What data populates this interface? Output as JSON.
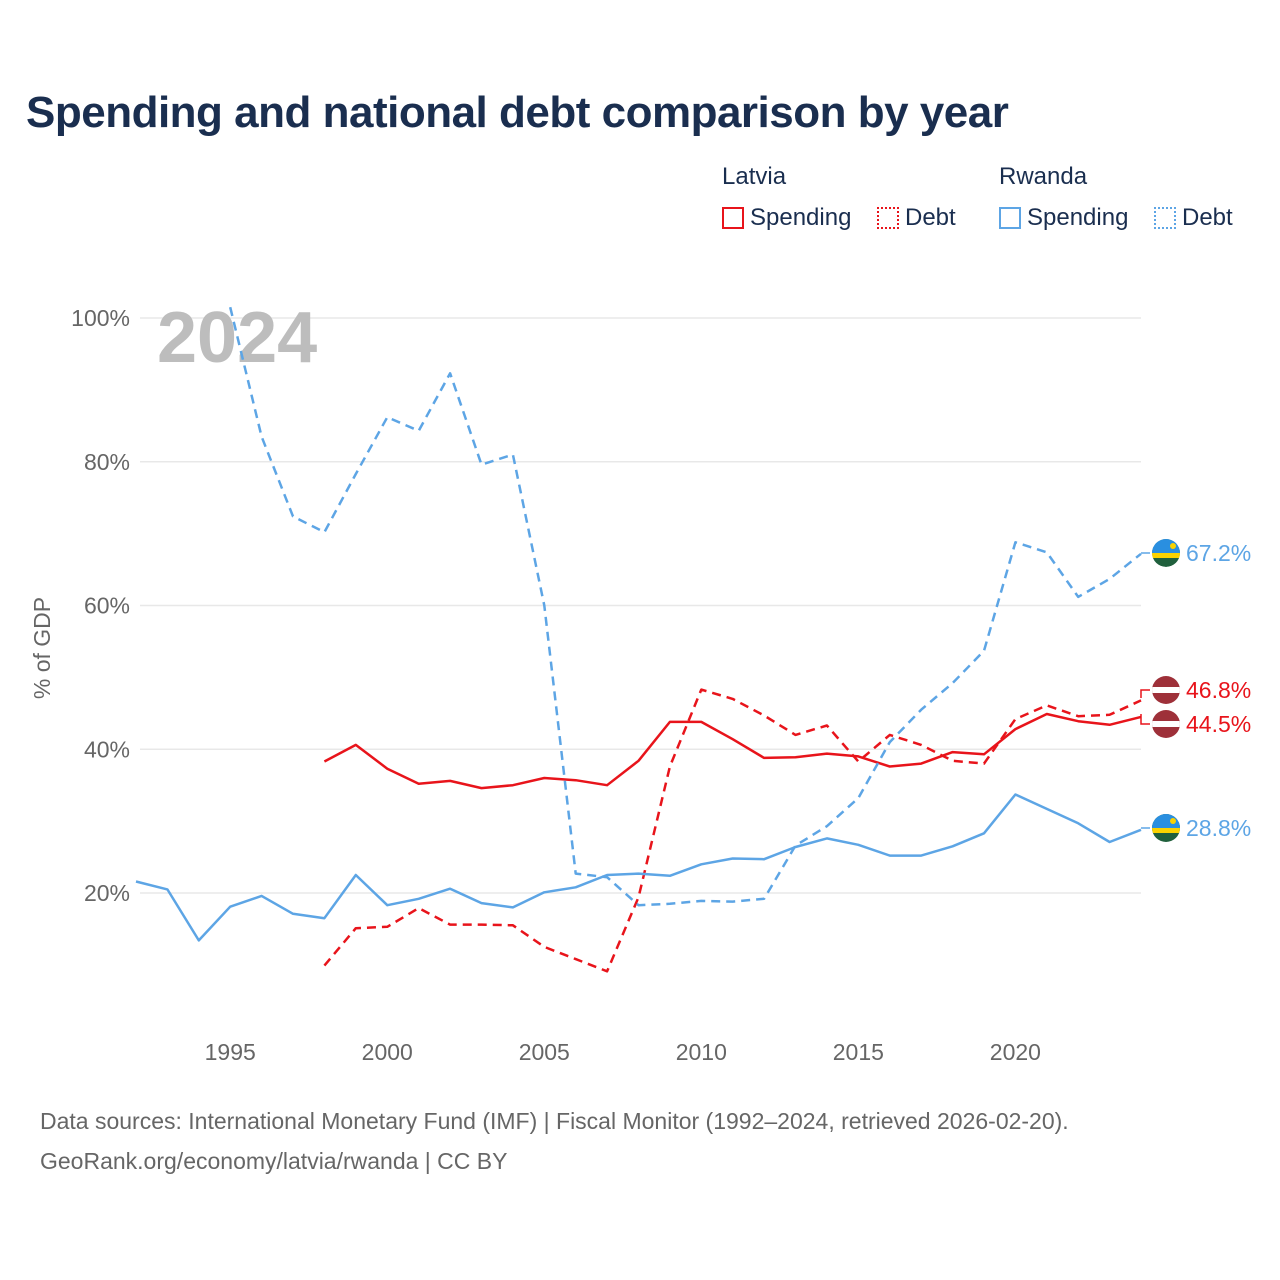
{
  "title": "Spending and national debt comparison by year",
  "legend": {
    "groups": [
      {
        "country": "Latvia",
        "items": [
          "Spending",
          "Debt"
        ]
      },
      {
        "country": "Rwanda",
        "items": [
          "Spending",
          "Debt"
        ]
      }
    ]
  },
  "colors": {
    "latvia": "#e8141b",
    "rwanda": "#5da5e5",
    "title": "#1a2e4f",
    "year_watermark": "#bdbdbd"
  },
  "year_watermark": "2024",
  "footer": {
    "line1": "Data sources: International Monetary Fund (IMF) | Fiscal Monitor (1992–2024, retrieved 2026-02-20).",
    "line2": "GeoRank.org/economy/latvia/rwanda | CC BY"
  },
  "chart_data": {
    "type": "line",
    "title": "Spending and national debt comparison by year",
    "xlabel": "",
    "ylabel": "% of GDP",
    "xlim": [
      1992,
      2024
    ],
    "ylim": [
      0,
      105
    ],
    "x_ticks": [
      "1995",
      "2000",
      "2005",
      "2010",
      "2015",
      "2020"
    ],
    "y_ticks": [
      "20%",
      "40%",
      "60%",
      "80%",
      "100%"
    ],
    "grid": true,
    "series": [
      {
        "name": "Latvia Spending",
        "country": "Latvia",
        "style": "solid",
        "color": "#e8141b",
        "x": [
          1998,
          1999,
          2000,
          2001,
          2002,
          2003,
          2004,
          2005,
          2006,
          2007,
          2008,
          2009,
          2010,
          2011,
          2012,
          2013,
          2014,
          2015,
          2016,
          2017,
          2018,
          2019,
          2020,
          2021,
          2022,
          2023,
          2024
        ],
        "values": [
          38.3,
          40.6,
          37.3,
          35.2,
          35.6,
          34.6,
          35.0,
          36.0,
          35.7,
          35.0,
          38.4,
          43.8,
          43.8,
          41.4,
          38.8,
          38.9,
          39.4,
          39.0,
          37.6,
          38.0,
          39.6,
          39.3,
          42.8,
          44.9,
          43.9,
          43.4,
          44.5
        ],
        "end_label": "44.5%"
      },
      {
        "name": "Latvia Debt",
        "country": "Latvia",
        "style": "dashed",
        "color": "#e8141b",
        "x": [
          1998,
          1999,
          2000,
          2001,
          2002,
          2003,
          2004,
          2005,
          2006,
          2007,
          2008,
          2009,
          2010,
          2011,
          2012,
          2013,
          2014,
          2015,
          2016,
          2017,
          2018,
          2019,
          2020,
          2021,
          2022,
          2023,
          2024
        ],
        "values": [
          9.9,
          15.1,
          15.3,
          17.9,
          15.6,
          15.6,
          15.5,
          12.5,
          10.8,
          9.1,
          19.4,
          37.6,
          48.3,
          47.0,
          44.7,
          42.0,
          43.3,
          38.3,
          42.0,
          40.6,
          38.4,
          38.0,
          44.2,
          46.1,
          44.6,
          44.8,
          46.8
        ],
        "end_label": "46.8%"
      },
      {
        "name": "Rwanda Spending",
        "country": "Rwanda",
        "style": "solid",
        "color": "#5da5e5",
        "x": [
          1992,
          1993,
          1994,
          1995,
          1996,
          1997,
          1998,
          1999,
          2000,
          2001,
          2002,
          2003,
          2004,
          2005,
          2006,
          2007,
          2008,
          2009,
          2010,
          2011,
          2012,
          2013,
          2014,
          2015,
          2016,
          2017,
          2018,
          2019,
          2020,
          2021,
          2022,
          2023,
          2024
        ],
        "values": [
          21.6,
          20.5,
          13.4,
          18.1,
          19.6,
          17.1,
          16.5,
          22.5,
          18.3,
          19.2,
          20.6,
          18.6,
          18.0,
          20.1,
          20.8,
          22.5,
          22.7,
          22.4,
          24.0,
          24.8,
          24.7,
          26.4,
          27.6,
          26.7,
          25.2,
          25.2,
          26.5,
          28.3,
          33.7,
          31.7,
          29.7,
          27.1,
          28.8
        ],
        "end_label": "28.8%"
      },
      {
        "name": "Rwanda Debt",
        "country": "Rwanda",
        "style": "dashed",
        "color": "#5da5e5",
        "x": [
          1995,
          1996,
          1997,
          1998,
          1999,
          2000,
          2001,
          2002,
          2003,
          2004,
          2005,
          2006,
          2007,
          2008,
          2009,
          2010,
          2011,
          2012,
          2013,
          2014,
          2015,
          2016,
          2017,
          2018,
          2019,
          2020,
          2021,
          2022,
          2023,
          2024
        ],
        "values": [
          101.5,
          83.5,
          72.4,
          70.2,
          78.3,
          86.2,
          84.3,
          92.3,
          79.6,
          81.0,
          60.0,
          22.7,
          22.2,
          18.3,
          18.5,
          18.9,
          18.8,
          19.2,
          26.6,
          29.3,
          33.2,
          41.0,
          45.5,
          49.2,
          53.7,
          68.8,
          67.4,
          61.2,
          63.7,
          67.2
        ],
        "end_label": "67.2%"
      }
    ]
  }
}
